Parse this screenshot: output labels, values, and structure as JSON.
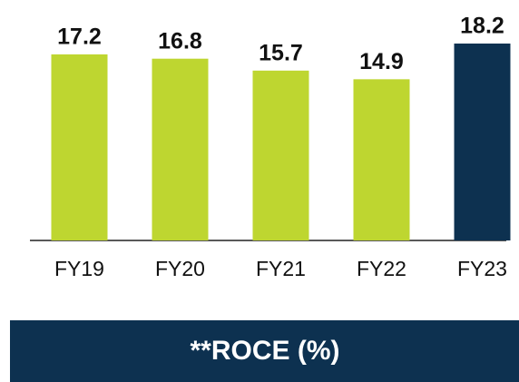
{
  "chart_data": {
    "type": "bar",
    "title": "**ROCE (%)",
    "categories": [
      "FY19",
      "FY20",
      "FY21",
      "FY22",
      "FY23"
    ],
    "values": [
      17.2,
      16.8,
      15.7,
      14.9,
      18.2
    ],
    "colors": [
      "#bed630",
      "#bed630",
      "#bed630",
      "#bed630",
      "#0d3150"
    ]
  }
}
